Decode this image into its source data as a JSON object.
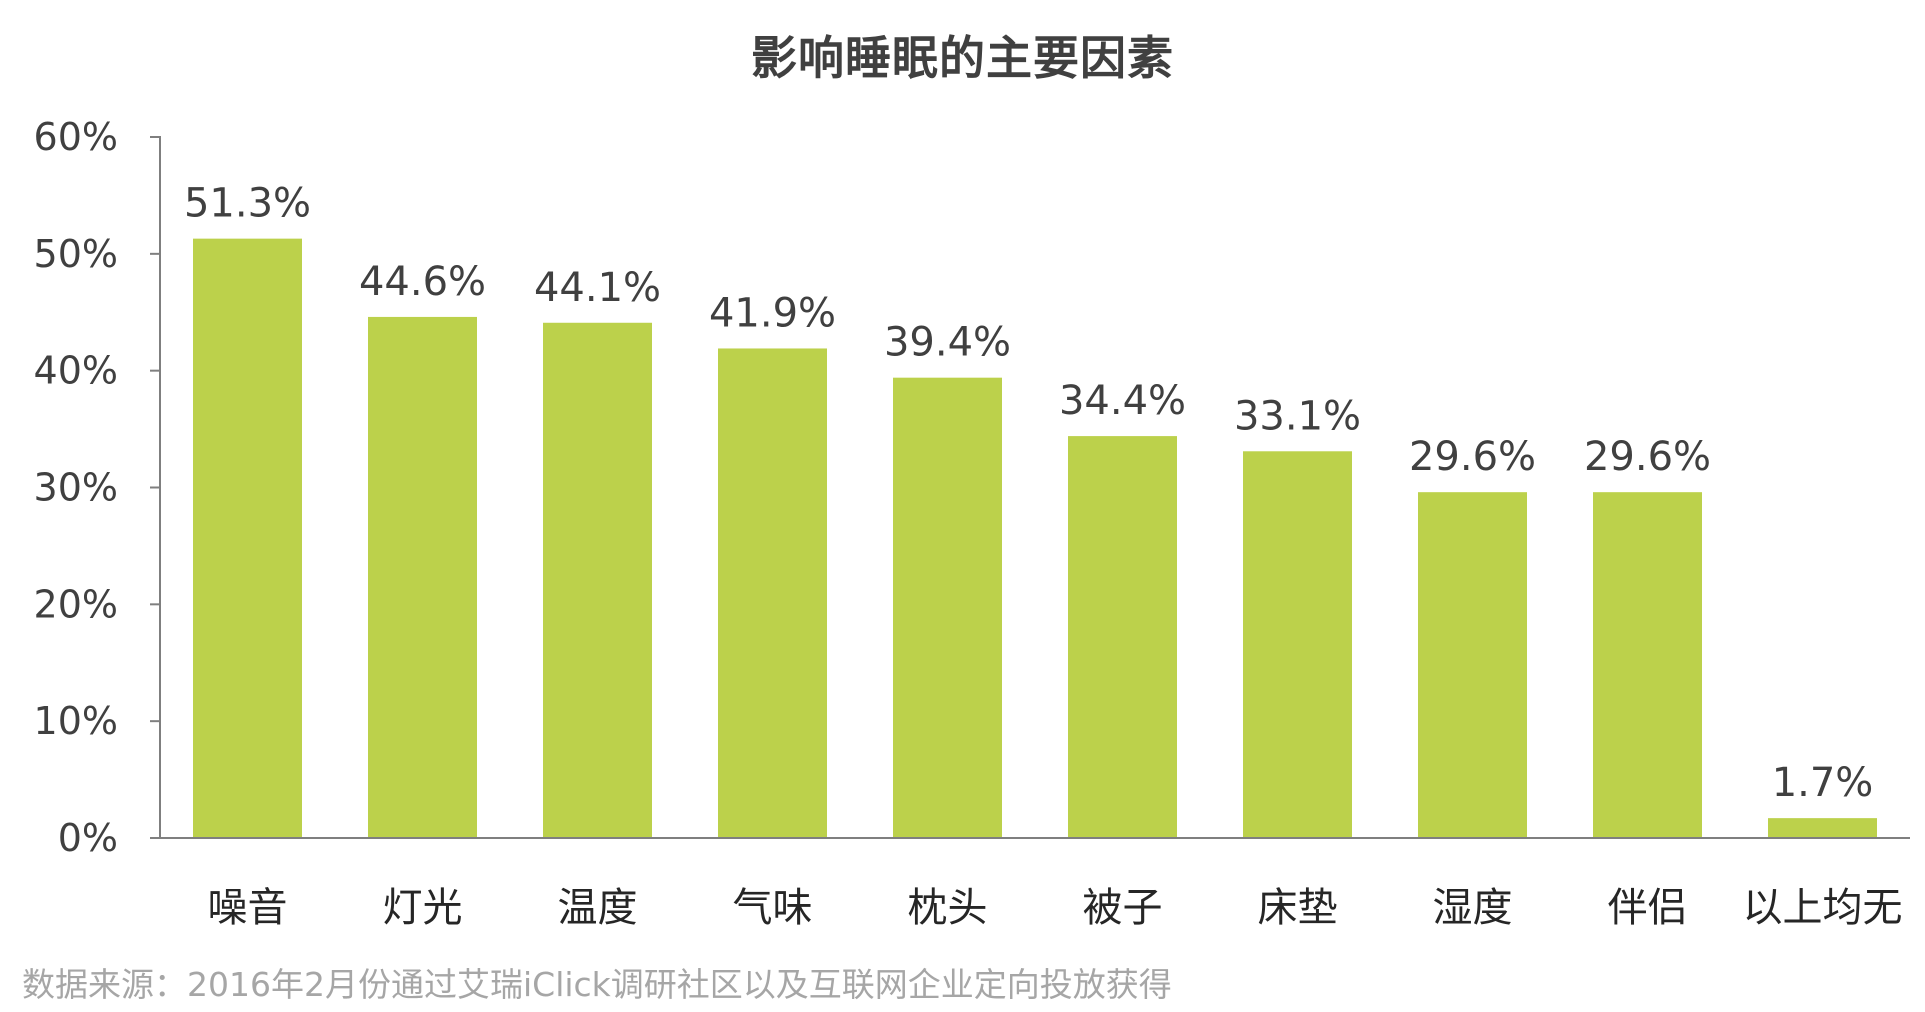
{
  "chart_data": {
    "type": "bar",
    "title": "影响睡眠的主要因素",
    "categories": [
      "噪音",
      "灯光",
      "温度",
      "气味",
      "枕头",
      "被子",
      "床垫",
      "湿度",
      "伴侣",
      "以上均无"
    ],
    "values": [
      51.3,
      44.6,
      44.1,
      41.9,
      39.4,
      34.4,
      33.1,
      29.6,
      29.6,
      1.7
    ],
    "value_labels": [
      "51.3%",
      "44.6%",
      "44.1%",
      "41.9%",
      "39.4%",
      "34.4%",
      "33.1%",
      "29.6%",
      "29.6%",
      "1.7%"
    ],
    "ylim": [
      0,
      60
    ],
    "y_ticks": [
      0,
      10,
      20,
      30,
      40,
      50,
      60
    ],
    "y_tick_labels": [
      "0%",
      "10%",
      "20%",
      "30%",
      "40%",
      "50%",
      "60%"
    ],
    "grid": false,
    "legend": "none",
    "bar_color": "#bcd14b",
    "axis_color": "#7f7f7f"
  },
  "source_note": "数据来源：2016年2月份通过艾瑞iClick调研社区以及互联网企业定向投放获得"
}
